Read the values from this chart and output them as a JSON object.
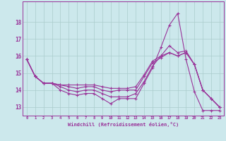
{
  "background_color": "#cce8ec",
  "grid_color": "#aacccc",
  "line_color": "#993399",
  "xlabel": "Windchill (Refroidissement éolien,°C)",
  "xlim": [
    -0.5,
    23.5
  ],
  "ylim": [
    12.5,
    19.2
  ],
  "yticks": [
    13,
    14,
    15,
    16,
    17,
    18
  ],
  "xticks": [
    0,
    1,
    2,
    3,
    4,
    5,
    6,
    7,
    8,
    9,
    10,
    11,
    12,
    13,
    14,
    15,
    16,
    17,
    18,
    19,
    20,
    21,
    22,
    23
  ],
  "series": [
    [
      15.8,
      14.8,
      14.4,
      14.4,
      14.0,
      13.8,
      13.7,
      13.8,
      13.8,
      13.5,
      13.2,
      13.5,
      13.5,
      13.5,
      14.4,
      15.3,
      16.5,
      17.8,
      18.5,
      15.8,
      13.9,
      12.8,
      12.8,
      12.8
    ],
    [
      15.8,
      14.8,
      14.4,
      14.4,
      14.2,
      14.0,
      13.9,
      14.0,
      14.0,
      13.8,
      13.6,
      13.6,
      13.6,
      13.8,
      14.5,
      15.4,
      16.0,
      16.6,
      16.2,
      16.3,
      15.5,
      14.0,
      13.5,
      13.0
    ],
    [
      15.8,
      14.8,
      14.4,
      14.4,
      14.3,
      14.2,
      14.1,
      14.2,
      14.2,
      14.0,
      13.9,
      14.0,
      14.0,
      14.0,
      14.8,
      15.6,
      15.9,
      16.2,
      16.0,
      16.2,
      15.5,
      14.0,
      13.5,
      13.0
    ],
    [
      15.8,
      14.8,
      14.4,
      14.4,
      14.3,
      14.3,
      14.3,
      14.3,
      14.3,
      14.2,
      14.1,
      14.1,
      14.1,
      14.2,
      14.9,
      15.7,
      16.0,
      16.2,
      16.0,
      16.2,
      15.5,
      14.0,
      13.5,
      13.0
    ]
  ]
}
